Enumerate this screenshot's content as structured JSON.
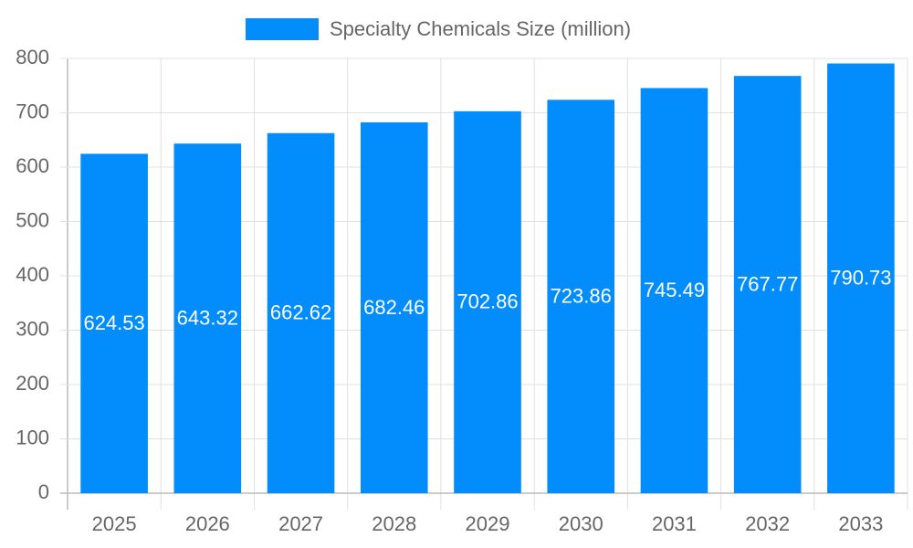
{
  "chart_data": {
    "type": "bar",
    "categories": [
      "2025",
      "2026",
      "2027",
      "2028",
      "2029",
      "2030",
      "2031",
      "2032",
      "2033"
    ],
    "series": [
      {
        "name": "Specialty Chemicals Size (million)",
        "color": "#038cfc",
        "values": [
          624.53,
          643.32,
          662.62,
          682.46,
          702.86,
          723.86,
          745.49,
          767.77,
          790.73
        ]
      }
    ],
    "ylim": [
      0,
      800
    ],
    "yticks": [
      0,
      100,
      200,
      300,
      400,
      500,
      600,
      700,
      800
    ],
    "grid": true,
    "legend": "top"
  }
}
